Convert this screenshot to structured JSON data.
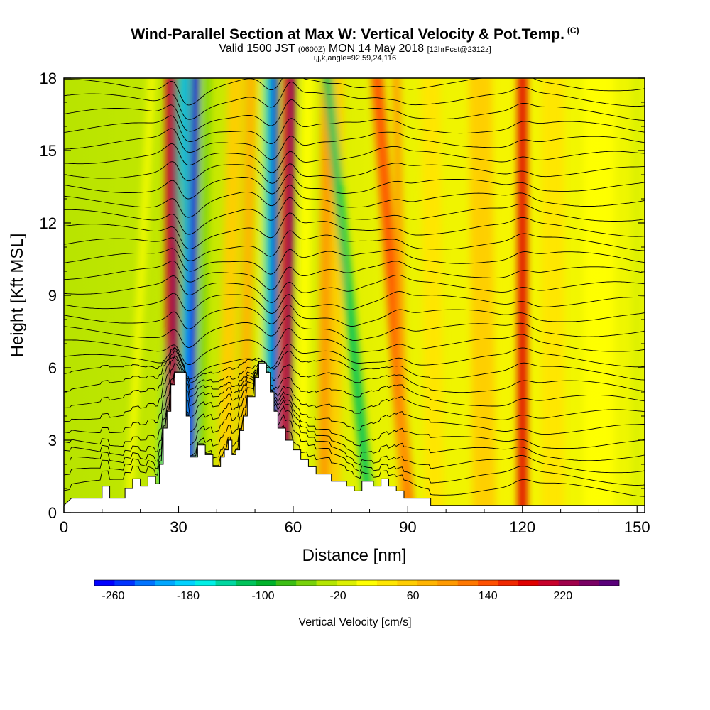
{
  "header": {
    "title": "Wind-Parallel Section at Max W: Vertical Velocity & Pot.Temp.",
    "title_tag": "(C)",
    "valid_prefix": "Valid 1500 JST",
    "valid_utc": "(0600Z)",
    "valid_date": "MON 14 May 2018",
    "forecast": "[12hrFcst@2312z]",
    "indices": "i,j,k,angle=92,59,24,116"
  },
  "chart_data": {
    "type": "heatmap",
    "xlabel": "Distance [nm]",
    "ylabel": "Height [Kft MSL]",
    "xlim": [
      0,
      152
    ],
    "ylim": [
      0,
      18
    ],
    "xticks": [
      0,
      30,
      60,
      90,
      120,
      150
    ],
    "yticks": [
      0,
      3,
      6,
      9,
      12,
      15,
      18
    ],
    "terrain": [
      [
        0,
        0.3
      ],
      [
        2,
        0.6
      ],
      [
        10,
        0.6
      ],
      [
        10,
        1.1
      ],
      [
        12,
        1.1
      ],
      [
        12,
        0.6
      ],
      [
        16,
        0.6
      ],
      [
        16,
        1
      ],
      [
        18,
        1
      ],
      [
        18,
        1.4
      ],
      [
        20,
        1.4
      ],
      [
        20,
        1.1
      ],
      [
        22,
        1.1
      ],
      [
        22,
        1.5
      ],
      [
        24,
        1.5
      ],
      [
        24,
        1.2
      ],
      [
        25,
        1.2
      ],
      [
        25,
        2
      ],
      [
        26,
        2
      ],
      [
        26,
        3.5
      ],
      [
        27,
        3.5
      ],
      [
        27,
        4.2
      ],
      [
        28,
        4.2
      ],
      [
        28,
        5.3
      ],
      [
        29,
        5.3
      ],
      [
        29,
        5.8
      ],
      [
        32,
        5.8
      ],
      [
        32,
        4
      ],
      [
        33,
        4
      ],
      [
        33,
        2.3
      ],
      [
        35,
        2.3
      ],
      [
        35,
        2.8
      ],
      [
        37,
        2.8
      ],
      [
        37,
        2.4
      ],
      [
        39,
        2.4
      ],
      [
        39,
        1.9
      ],
      [
        41,
        1.9
      ],
      [
        41,
        2.3
      ],
      [
        42,
        2.3
      ],
      [
        42,
        2.6
      ],
      [
        43,
        2.6
      ],
      [
        43,
        3
      ],
      [
        44,
        3
      ],
      [
        44,
        2.4
      ],
      [
        45,
        2.4
      ],
      [
        45,
        2.6
      ],
      [
        46,
        2.6
      ],
      [
        46,
        3.4
      ],
      [
        47,
        3.4
      ],
      [
        47,
        4
      ],
      [
        48,
        4
      ],
      [
        48,
        4.8
      ],
      [
        50,
        4.8
      ],
      [
        50,
        5.6
      ],
      [
        51,
        5.6
      ],
      [
        51,
        6.2
      ],
      [
        53,
        6.2
      ],
      [
        53,
        5.8
      ],
      [
        54,
        5.8
      ],
      [
        54,
        5
      ],
      [
        55,
        5
      ],
      [
        55,
        4.2
      ],
      [
        56,
        4.2
      ],
      [
        56,
        3.5
      ],
      [
        58,
        3.5
      ],
      [
        58,
        3
      ],
      [
        60,
        3
      ],
      [
        60,
        2.6
      ],
      [
        62,
        2.6
      ],
      [
        62,
        2.2
      ],
      [
        64,
        2.2
      ],
      [
        64,
        1.9
      ],
      [
        66,
        1.9
      ],
      [
        66,
        1.6
      ],
      [
        70,
        1.6
      ],
      [
        70,
        1.3
      ],
      [
        74,
        1.3
      ],
      [
        74,
        1.1
      ],
      [
        76,
        1.1
      ],
      [
        76,
        0.9
      ],
      [
        78,
        0.9
      ],
      [
        78,
        1.3
      ],
      [
        81,
        1.3
      ],
      [
        81,
        1.1
      ],
      [
        83,
        1.1
      ],
      [
        83,
        1.4
      ],
      [
        85,
        1.4
      ],
      [
        85,
        1.1
      ],
      [
        87,
        1.1
      ],
      [
        87,
        0.9
      ],
      [
        89,
        0.9
      ],
      [
        89,
        0.6
      ],
      [
        96,
        0.6
      ],
      [
        96,
        0.3
      ],
      [
        152,
        0.3
      ]
    ],
    "w_bands": [
      {
        "x": 17,
        "x_top": 23,
        "width": 1.6,
        "value": 0
      },
      {
        "x": 25.5,
        "x_top": 31,
        "width": 2.2,
        "value": -140
      },
      {
        "x": 27.8,
        "x_top": 27.5,
        "width": 1.9,
        "value": 200
      },
      {
        "x": 29.5,
        "x_top": 29,
        "width": 1.4,
        "value": 240
      },
      {
        "x": 31.5,
        "x_top": 32,
        "width": 1.7,
        "value": -200
      },
      {
        "x": 33,
        "x_top": 34.5,
        "width": 2,
        "value": -260
      },
      {
        "x": 35.5,
        "x_top": 37.5,
        "width": 2,
        "value": -60
      },
      {
        "x": 42,
        "x_top": 45,
        "width": 4,
        "value": 60
      },
      {
        "x": 47,
        "x_top": 49,
        "width": 3,
        "value": 80
      },
      {
        "x": 51.5,
        "x_top": 52,
        "width": 1.6,
        "value": 0
      },
      {
        "x": 53,
        "x_top": 53,
        "width": 2,
        "value": -140
      },
      {
        "x": 55,
        "x_top": 55,
        "width": 2,
        "value": -240
      },
      {
        "x": 57,
        "x_top": 58.5,
        "width": 1.6,
        "value": 200
      },
      {
        "x": 58.7,
        "x_top": 60,
        "width": 1.5,
        "value": 250
      },
      {
        "x": 62,
        "x_top": 64,
        "width": 3,
        "value": 20
      },
      {
        "x": 68,
        "x_top": 69,
        "width": 3,
        "value": 100
      },
      {
        "x": 71,
        "x_top": 72,
        "width": 2.5,
        "value": 60
      },
      {
        "x": 80,
        "x_top": 69,
        "width": 2.5,
        "value": -120
      },
      {
        "x": 90,
        "x_top": 82,
        "width": 3,
        "value": 140
      },
      {
        "x": 89,
        "x_top": 87,
        "width": 2,
        "value": 100
      },
      {
        "x": 97,
        "x_top": 96,
        "width": 5,
        "value": 40
      },
      {
        "x": 110,
        "x_top": 109,
        "width": 6,
        "value": 60
      },
      {
        "x": 120,
        "x_top": 120,
        "width": 2.5,
        "value": 180
      },
      {
        "x": 128,
        "x_top": 128,
        "width": 6,
        "value": 40
      },
      {
        "x": 140,
        "x_top": 140,
        "width": 8,
        "value": 20
      },
      {
        "x": 150,
        "x_top": 150,
        "width": 3,
        "value": -20
      }
    ],
    "theta_levels": [
      0.7,
      1.2,
      1.7,
      2.2,
      2.7,
      3.3,
      3.9,
      4.5,
      5.1,
      5.7,
      6.3,
      6.9,
      7.5,
      8.1,
      8.7,
      9.3,
      9.9,
      10.5,
      11.1,
      11.7,
      12.3,
      12.9,
      13.5,
      14.1,
      14.7,
      15.3,
      15.9,
      16.5,
      17.1,
      17.7
    ],
    "colorbar": {
      "label": "Vertical Velocity [cm/s]",
      "ticks": [
        "-260",
        "-180",
        "-100",
        "-20",
        "60",
        "140",
        "220"
      ],
      "min": -280,
      "max": 280,
      "colors": [
        "#0000ff",
        "#0033ff",
        "#0073ff",
        "#00a7ff",
        "#00d2ff",
        "#00f0e6",
        "#00d7a0",
        "#00c35a",
        "#00b22a",
        "#3cbe14",
        "#78d20a",
        "#b4e600",
        "#dcf000",
        "#ffff00",
        "#ffe600",
        "#ffcd00",
        "#ffb400",
        "#ff9a00",
        "#ff7800",
        "#ff5000",
        "#f02800",
        "#e00000",
        "#c8002a",
        "#a0004a",
        "#7a0064",
        "#5a007a"
      ]
    }
  }
}
